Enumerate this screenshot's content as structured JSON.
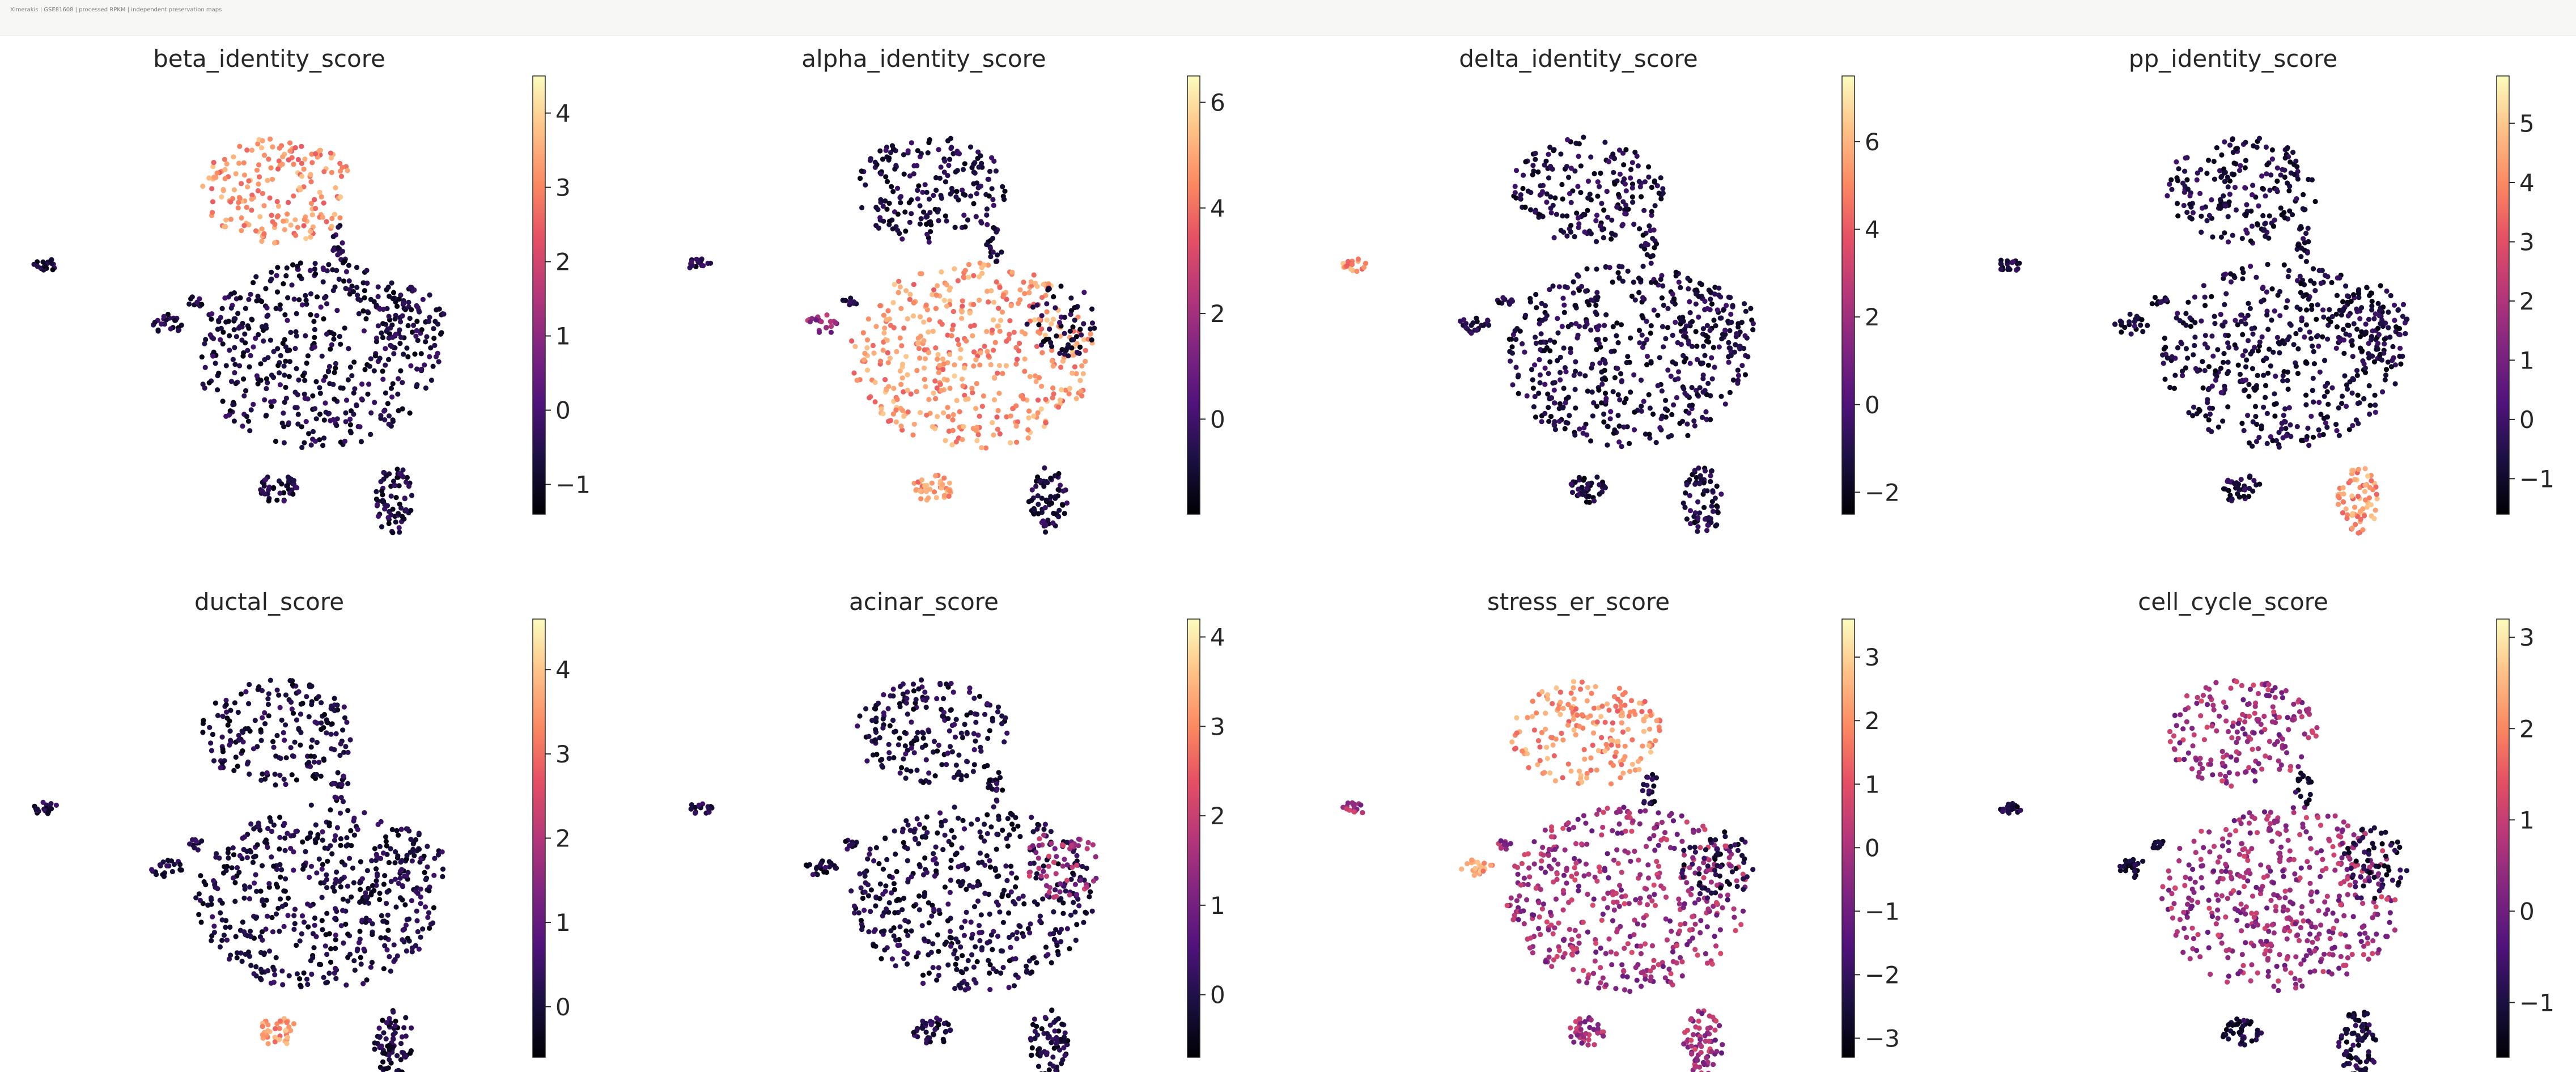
{
  "window": {
    "title": "Ximerakis | GSE81608 | processed RPKM | independent preservation maps"
  },
  "colors": {
    "colormap": "magma",
    "text": "#262626",
    "background": "#ffffff"
  },
  "chart_data": [
    {
      "type": "scatter",
      "title": "beta_identity_score",
      "colorbar": {
        "ticks": [
          -1,
          0,
          1,
          2,
          3,
          4
        ],
        "range": [
          -1.4,
          4.5
        ]
      },
      "high_clusters": [
        "beta"
      ],
      "mid_clusters": []
    },
    {
      "type": "scatter",
      "title": "alpha_identity_score",
      "colorbar": {
        "ticks": [
          0,
          2,
          4,
          6
        ],
        "range": [
          -1.8,
          6.5
        ]
      },
      "high_clusters": [
        "alpha",
        "bottom_small"
      ],
      "mid_clusters": [
        "mid_small"
      ]
    },
    {
      "type": "scatter",
      "title": "delta_identity_score",
      "colorbar": {
        "ticks": [
          -2,
          0,
          2,
          4,
          6
        ],
        "range": [
          -2.5,
          7.5
        ]
      },
      "high_clusters": [
        "left_far"
      ],
      "mid_clusters": []
    },
    {
      "type": "scatter",
      "title": "pp_identity_score",
      "colorbar": {
        "ticks": [
          -1,
          0,
          1,
          2,
          3,
          4,
          5
        ],
        "range": [
          -1.6,
          5.8
        ]
      },
      "high_clusters": [
        "pp"
      ],
      "mid_clusters": []
    },
    {
      "type": "scatter",
      "title": "ductal_score",
      "colorbar": {
        "ticks": [
          0,
          1,
          2,
          3,
          4
        ],
        "range": [
          -0.6,
          4.6
        ]
      },
      "high_clusters": [
        "bottom_small"
      ],
      "mid_clusters": []
    },
    {
      "type": "scatter",
      "title": "acinar_score",
      "colorbar": {
        "ticks": [
          0,
          1,
          2,
          3,
          4
        ],
        "range": [
          -0.7,
          4.2
        ]
      },
      "high_clusters": [],
      "mid_clusters": [
        "alpha_edge"
      ]
    },
    {
      "type": "scatter",
      "title": "stress_er_score",
      "colorbar": {
        "ticks": [
          -3,
          -2,
          -1,
          0,
          1,
          2,
          3
        ],
        "range": [
          -3.3,
          3.6
        ]
      },
      "high_clusters": [
        "beta",
        "mid_small"
      ],
      "mid_clusters": [
        "alpha",
        "delta_small",
        "left_far",
        "bottom_small",
        "pp"
      ]
    },
    {
      "type": "scatter",
      "title": "cell_cycle_score",
      "colorbar": {
        "ticks": [
          -1,
          0,
          1,
          2,
          3
        ],
        "range": [
          -1.6,
          3.2
        ]
      },
      "high_clusters": [],
      "mid_clusters": [
        "alpha",
        "beta"
      ]
    }
  ]
}
